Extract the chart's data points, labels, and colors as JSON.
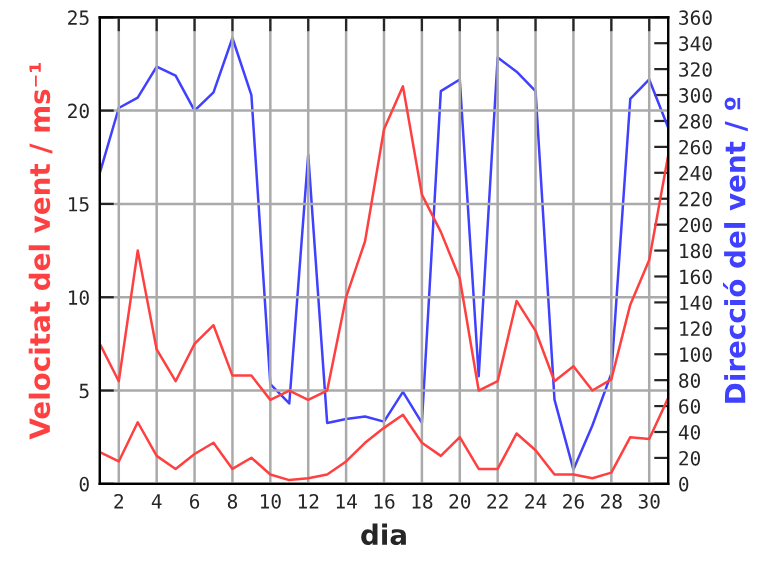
{
  "chart_data": {
    "type": "line",
    "xlabel": "dia",
    "ylabel": "Velocitat del vent / ms⁻¹",
    "y2label": "Direcció del vent / º",
    "x": [
      1,
      2,
      3,
      4,
      5,
      6,
      7,
      8,
      9,
      10,
      11,
      12,
      13,
      14,
      15,
      16,
      17,
      18,
      19,
      20,
      21,
      22,
      23,
      24,
      25,
      26,
      27,
      28,
      29,
      30,
      31
    ],
    "series": [
      {
        "color": "#ff4040",
        "values": [
          7.5,
          5.5,
          12.5,
          7.2,
          5.5,
          7.5,
          8.5,
          5.8,
          5.8,
          4.5,
          5,
          4.5,
          5,
          10,
          13,
          19,
          21.3,
          15.5,
          13.5,
          11,
          5,
          5.5,
          9.8,
          8.2,
          5.5,
          6.3,
          5,
          5.6,
          9.6,
          12,
          17.6
        ]
      },
      {
        "color": "#ff4040",
        "values": [
          1.7,
          1.2,
          3.3,
          1.5,
          0.8,
          1.6,
          2.2,
          0.8,
          1.4,
          0.5,
          0.2,
          0.3,
          0.5,
          1.2,
          2.2,
          3,
          3.7,
          2.2,
          1.5,
          2.5,
          0.8,
          0.8,
          2.7,
          1.8,
          0.5,
          0.5,
          0.3,
          0.6,
          2.5,
          2.4,
          4.6
        ]
      },
      {
        "color": "#4040ff",
        "axis": "y2",
        "values": [
          240,
          290,
          298,
          322,
          315,
          288,
          302,
          344,
          300,
          77,
          62,
          254,
          47,
          50,
          52,
          48,
          71,
          47,
          303,
          312,
          83,
          329,
          318,
          303,
          65,
          11,
          45,
          85,
          297,
          312,
          275
        ]
      }
    ],
    "xlim": [
      1,
      31
    ],
    "xticks": [
      2,
      4,
      6,
      8,
      10,
      12,
      14,
      16,
      18,
      20,
      22,
      24,
      26,
      28,
      30
    ],
    "ylim": [
      0,
      25
    ],
    "yticks": [
      0,
      5,
      10,
      15,
      20,
      25
    ],
    "y2lim": [
      0,
      360
    ],
    "y2ticks": [
      0,
      20,
      40,
      60,
      80,
      100,
      120,
      140,
      160,
      180,
      200,
      220,
      240,
      260,
      280,
      300,
      320,
      340,
      360
    ],
    "grid": true
  }
}
